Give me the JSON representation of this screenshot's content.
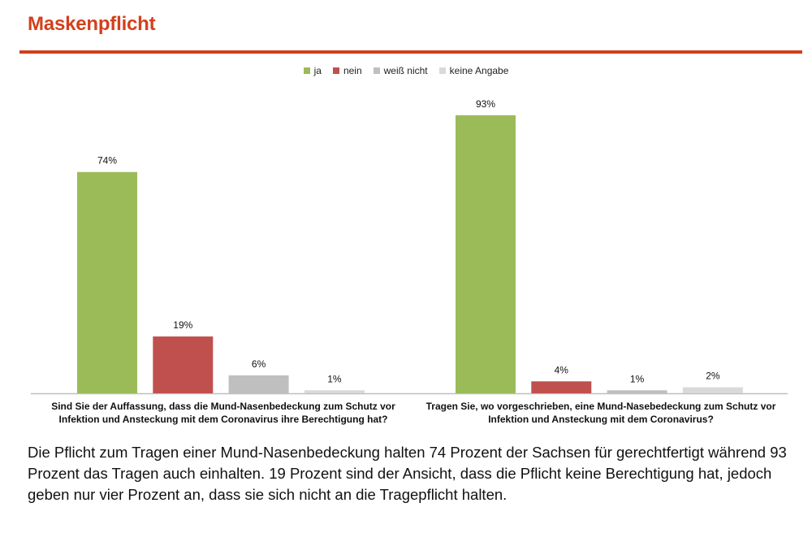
{
  "header": {
    "title": "Maskenpflicht",
    "accent_color": "#d2401c"
  },
  "chart_data": {
    "type": "bar",
    "title": "Maskenpflicht",
    "legend_position": "top-center",
    "ylim": [
      0,
      100
    ],
    "grid": false,
    "xlabel": "",
    "ylabel": "",
    "series": [
      {
        "name": "ja",
        "color": "#9bbb59"
      },
      {
        "name": "nein",
        "color": "#c0504d"
      },
      {
        "name": "weiß nicht",
        "color": "#bfbfbf"
      },
      {
        "name": "keine Angabe",
        "color": "#d9d9d9"
      }
    ],
    "groups": [
      {
        "question": "Sind Sie der Auffassung, dass die Mund-Nasenbedeckung zum Schutz vor Infektion und Ansteckung mit dem Coronavirus ihre Berechtigung hat?",
        "values": [
          74,
          19,
          6,
          1
        ],
        "labels": [
          "74%",
          "19%",
          "6%",
          "1%"
        ]
      },
      {
        "question": "Tragen Sie, wo vorgeschrieben, eine Mund-Nasebedeckung zum Schutz vor Infektion und Ansteckung mit dem Coronavirus?",
        "values": [
          93,
          4,
          1,
          2
        ],
        "labels": [
          "93%",
          "4%",
          "1%",
          "2%"
        ]
      }
    ]
  },
  "legend": [
    {
      "label": "ja",
      "color": "#9bbb59"
    },
    {
      "label": "nein",
      "color": "#c0504d"
    },
    {
      "label": "weiß nicht",
      "color": "#bfbfbf"
    },
    {
      "label": "keine Angabe",
      "color": "#d9d9d9"
    }
  ],
  "summary": "Die Pflicht zum Tragen einer Mund-Nasenbedeckung halten 74 Prozent der Sachsen für gerechtfertigt während 93 Prozent das Tragen auch einhalten. 19 Prozent sind der Ansicht, dass die Pflicht keine Berechtigung hat, jedoch geben nur vier Prozent an, dass sie sich nicht an die Tragepflicht halten."
}
